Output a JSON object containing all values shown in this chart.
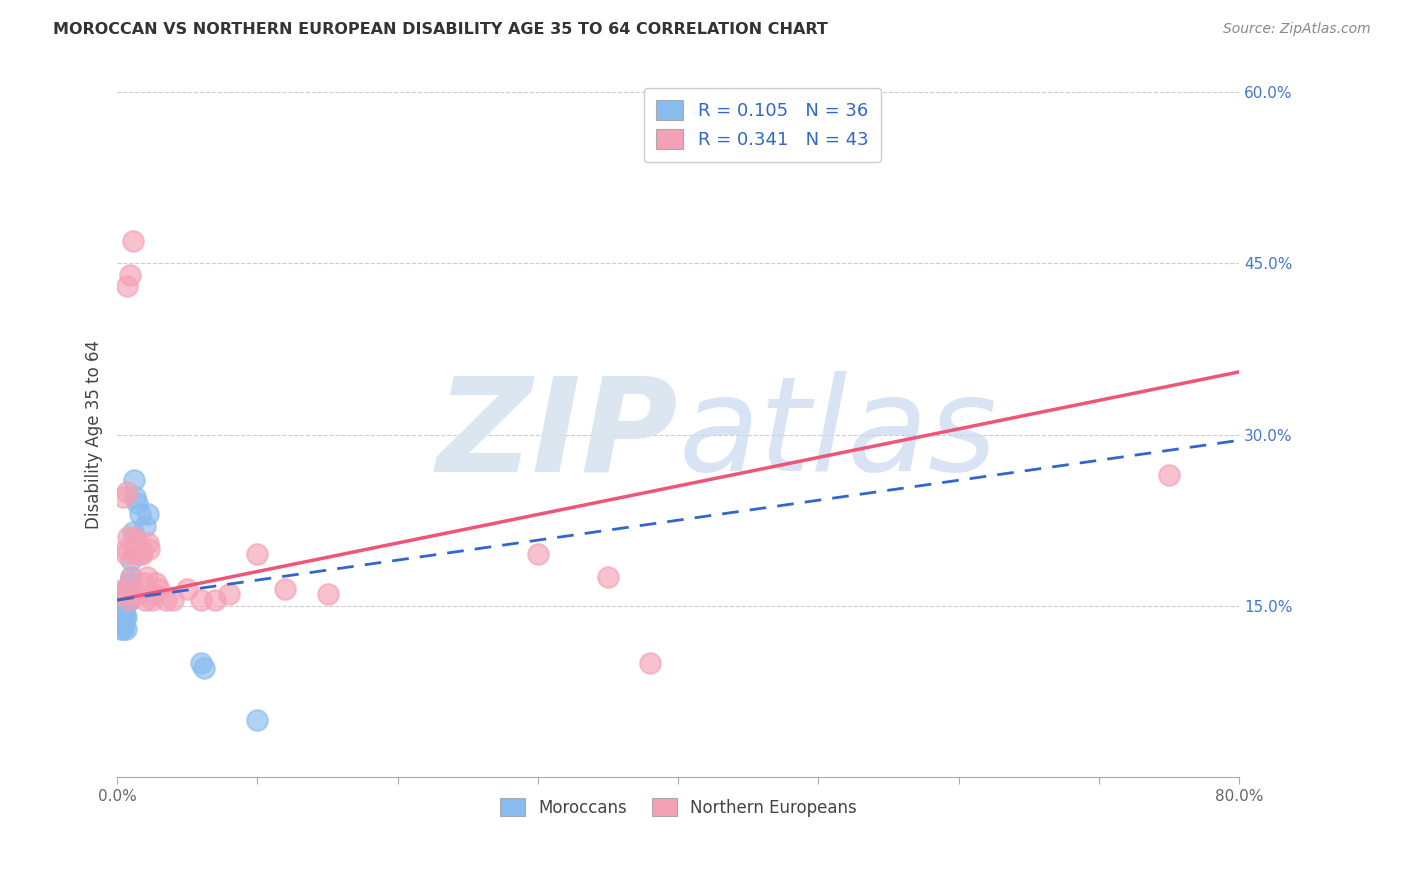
{
  "title": "MOROCCAN VS NORTHERN EUROPEAN DISABILITY AGE 35 TO 64 CORRELATION CHART",
  "source": "Source: ZipAtlas.com",
  "ylabel": "Disability Age 35 to 64",
  "xlim": [
    0,
    0.8
  ],
  "ylim": [
    0,
    0.6
  ],
  "moroccan_color": "#88BBEE",
  "northern_color": "#F4A0B5",
  "moroccan_R": 0.105,
  "moroccan_N": 36,
  "northern_R": 0.341,
  "northern_N": 43,
  "moroccan_line_color": "#3366CC",
  "northern_line_color": "#EE5577",
  "watermark_zip": "ZIP",
  "watermark_atlas": "atlas",
  "legend_label_moroccan": "Moroccans",
  "legend_label_northern": "Northern Europeans",
  "moroccan_x": [
    0.002,
    0.003,
    0.003,
    0.004,
    0.004,
    0.004,
    0.004,
    0.005,
    0.005,
    0.005,
    0.005,
    0.005,
    0.006,
    0.006,
    0.006,
    0.006,
    0.007,
    0.007,
    0.007,
    0.008,
    0.008,
    0.008,
    0.009,
    0.009,
    0.01,
    0.01,
    0.011,
    0.012,
    0.013,
    0.014,
    0.016,
    0.02,
    0.022,
    0.06,
    0.062,
    0.1
  ],
  "moroccan_y": [
    0.135,
    0.14,
    0.13,
    0.145,
    0.14,
    0.135,
    0.13,
    0.155,
    0.15,
    0.145,
    0.14,
    0.135,
    0.16,
    0.155,
    0.14,
    0.13,
    0.165,
    0.16,
    0.155,
    0.165,
    0.16,
    0.155,
    0.17,
    0.155,
    0.175,
    0.19,
    0.215,
    0.26,
    0.245,
    0.24,
    0.23,
    0.22,
    0.23,
    0.1,
    0.095,
    0.05
  ],
  "northern_x": [
    0.003,
    0.004,
    0.005,
    0.006,
    0.006,
    0.007,
    0.007,
    0.008,
    0.008,
    0.009,
    0.01,
    0.01,
    0.011,
    0.012,
    0.013,
    0.013,
    0.014,
    0.015,
    0.016,
    0.017,
    0.018,
    0.019,
    0.02,
    0.021,
    0.022,
    0.023,
    0.025,
    0.026,
    0.028,
    0.03,
    0.035,
    0.04,
    0.05,
    0.06,
    0.07,
    0.08,
    0.1,
    0.12,
    0.15,
    0.3,
    0.35,
    0.38,
    0.75
  ],
  "northern_y": [
    0.16,
    0.245,
    0.165,
    0.2,
    0.195,
    0.25,
    0.43,
    0.155,
    0.21,
    0.44,
    0.16,
    0.175,
    0.47,
    0.21,
    0.2,
    0.195,
    0.205,
    0.16,
    0.195,
    0.2,
    0.195,
    0.17,
    0.155,
    0.175,
    0.205,
    0.2,
    0.155,
    0.16,
    0.17,
    0.165,
    0.155,
    0.155,
    0.165,
    0.155,
    0.155,
    0.16,
    0.195,
    0.165,
    0.16,
    0.195,
    0.175,
    0.1,
    0.265
  ]
}
